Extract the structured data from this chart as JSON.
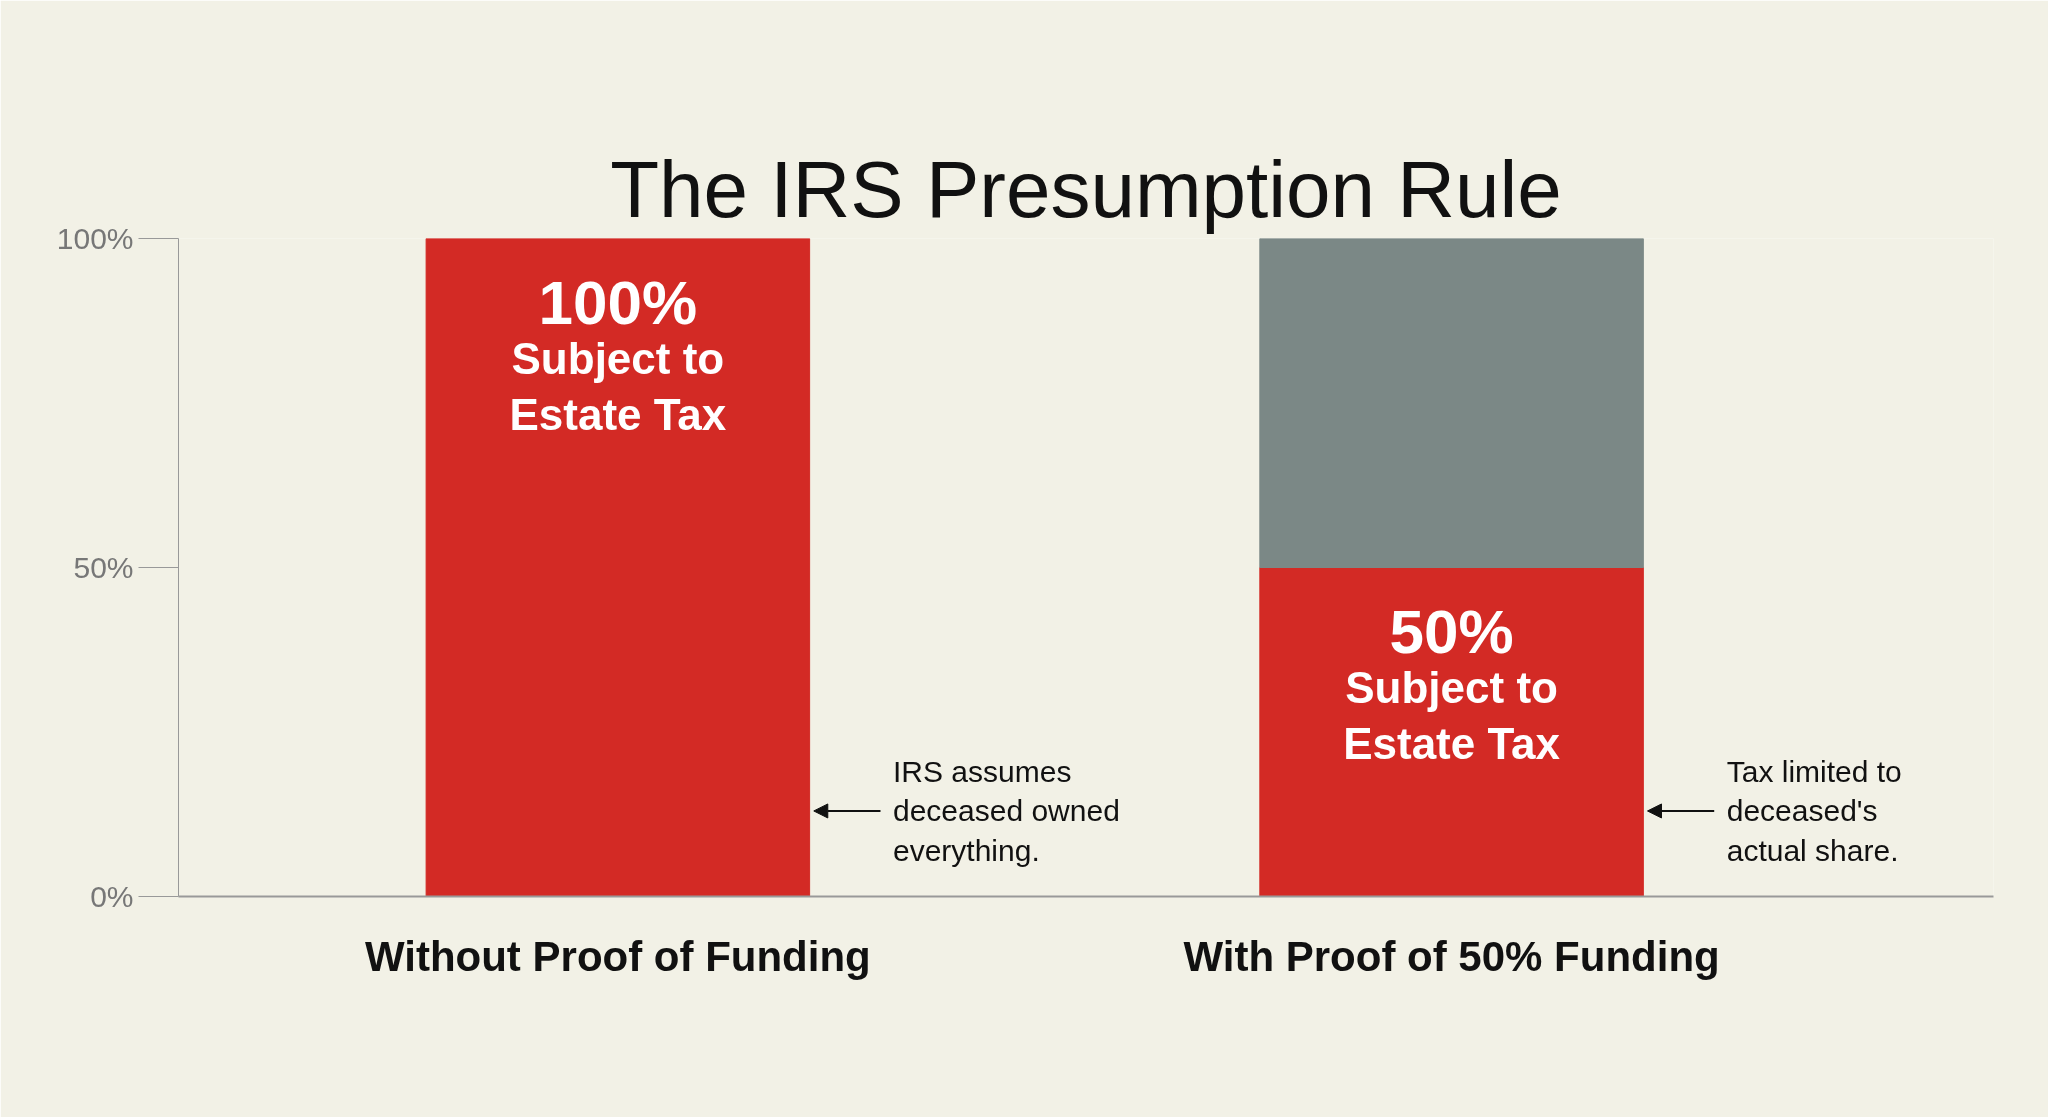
{
  "chart_data": {
    "type": "bar",
    "title": "The IRS Presumption Rule",
    "categories": [
      "Without Proof of Funding",
      "With Proof of 50% Funding"
    ],
    "stacked": true,
    "series": [
      {
        "color": "#d32a25",
        "values": [
          100,
          50
        ],
        "value_labels": [
          "100%\nSubject to\nEstate Tax",
          "50%\nSubject to\nEstate Tax"
        ]
      },
      {
        "color": "#7b8886",
        "values": [
          null,
          50
        ]
      }
    ],
    "ylim": [
      0,
      100
    ],
    "yticks": [
      {
        "value": 0,
        "label": "0%"
      },
      {
        "value": 50,
        "label": "50%"
      },
      {
        "value": 100,
        "label": "100%"
      }
    ],
    "grid": false,
    "annotations": [
      "IRS assumes\ndeceased owned\neverything.",
      "Tax limited to\ndeceased's\nactual share."
    ]
  }
}
